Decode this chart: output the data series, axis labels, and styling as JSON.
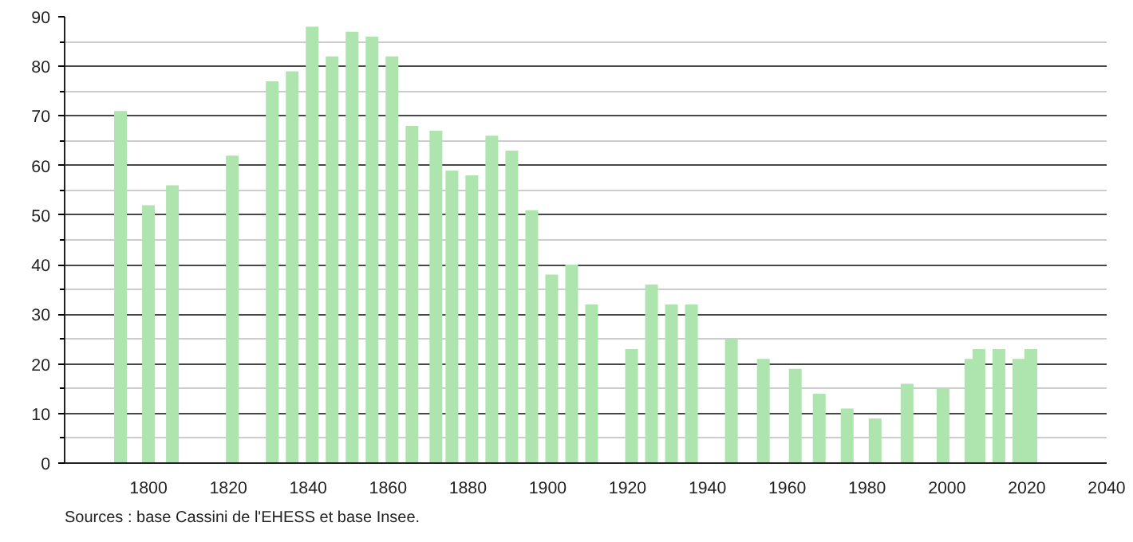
{
  "chart_data": {
    "type": "bar",
    "x": [
      1793,
      1800,
      1806,
      1821,
      1831,
      1836,
      1841,
      1846,
      1851,
      1856,
      1861,
      1866,
      1872,
      1876,
      1881,
      1886,
      1891,
      1896,
      1901,
      1906,
      1911,
      1921,
      1926,
      1931,
      1936,
      1946,
      1954,
      1962,
      1968,
      1975,
      1982,
      1990,
      1999,
      2006,
      2008,
      2013,
      2018,
      2021
    ],
    "values": [
      71,
      52,
      56,
      62,
      77,
      79,
      88,
      82,
      87,
      86,
      82,
      68,
      67,
      59,
      58,
      66,
      63,
      51,
      38,
      40,
      32,
      23,
      36,
      32,
      32,
      25,
      21,
      19,
      14,
      11,
      9,
      16,
      15,
      21,
      23,
      23,
      21,
      23
    ],
    "color": "#aee4ae",
    "xlim": [
      1779,
      2040
    ],
    "xticks": [
      1800,
      1820,
      1840,
      1860,
      1880,
      1900,
      1920,
      1940,
      1960,
      1980,
      2000,
      2020,
      2040
    ],
    "ylim": [
      0,
      90
    ],
    "yticks": [
      0,
      10,
      20,
      30,
      40,
      50,
      60,
      70,
      80,
      90
    ],
    "grid": "y",
    "annotations": [
      "Sources : base Cassini de l'EHESS et base Insee."
    ]
  }
}
